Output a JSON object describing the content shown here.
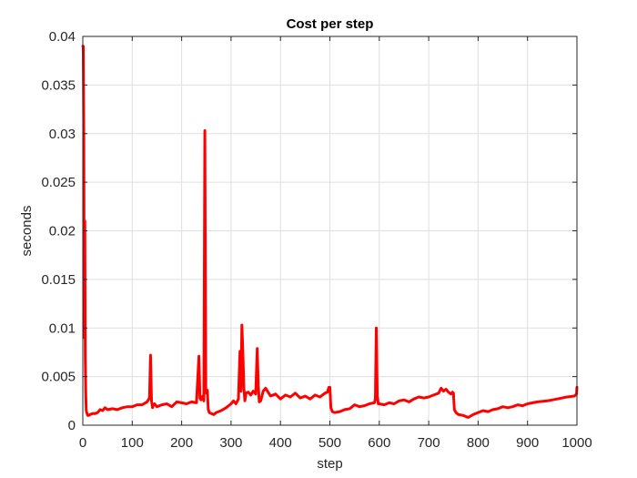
{
  "chart_data": {
    "type": "line",
    "title": "Cost per step",
    "xlabel": "step",
    "ylabel": "seconds",
    "xlim": [
      0,
      1000
    ],
    "ylim": [
      0,
      0.04
    ],
    "xticks": [
      "0",
      "100",
      "200",
      "300",
      "400",
      "500",
      "600",
      "700",
      "800",
      "900",
      "1000"
    ],
    "yticks": [
      "0",
      "0.005",
      "0.01",
      "0.015",
      "0.02",
      "0.025",
      "0.03",
      "0.035",
      "0.04"
    ],
    "grid": true,
    "legend": "none",
    "colors": {
      "line": "#ff0000",
      "grid": "#dfdfdf",
      "axis": "#262626"
    },
    "series": [
      {
        "x": [
          0,
          1,
          2,
          3,
          4,
          5,
          6,
          7,
          8,
          10,
          12,
          15,
          20,
          25,
          30,
          35,
          40,
          45,
          50,
          60,
          70,
          80,
          90,
          100,
          110,
          120,
          130,
          135,
          137,
          139,
          141,
          143,
          145,
          150,
          160,
          170,
          180,
          190,
          200,
          210,
          220,
          230,
          235,
          237,
          239,
          241,
          243,
          245,
          247,
          249,
          250,
          252,
          254,
          256,
          260,
          265,
          270,
          280,
          290,
          300,
          305,
          310,
          315,
          318,
          320,
          322,
          324,
          326,
          328,
          330,
          335,
          340,
          345,
          350,
          353,
          355,
          357,
          360,
          365,
          370,
          380,
          390,
          400,
          410,
          420,
          430,
          440,
          450,
          460,
          470,
          480,
          490,
          495,
          498,
          500,
          502,
          505,
          510,
          520,
          530,
          540,
          550,
          560,
          570,
          580,
          590,
          592,
          594,
          596,
          598,
          600,
          610,
          620,
          630,
          640,
          650,
          660,
          670,
          680,
          690,
          700,
          710,
          720,
          725,
          730,
          735,
          740,
          745,
          748,
          750,
          752,
          755,
          760,
          770,
          780,
          790,
          800,
          810,
          820,
          830,
          840,
          850,
          860,
          870,
          880,
          890,
          900,
          920,
          940,
          960,
          980,
          995,
          999,
          1000
        ],
        "values": [
          0.039,
          0.039,
          0.03,
          0.009,
          0.021,
          0.007,
          0.003,
          0.0015,
          0.0013,
          0.001,
          0.001,
          0.0011,
          0.0012,
          0.0012,
          0.0013,
          0.0016,
          0.0015,
          0.0018,
          0.0016,
          0.0017,
          0.0016,
          0.0018,
          0.0019,
          0.0019,
          0.0021,
          0.0021,
          0.0024,
          0.0028,
          0.0072,
          0.0025,
          0.0018,
          0.0021,
          0.0022,
          0.0019,
          0.0021,
          0.0022,
          0.0019,
          0.0024,
          0.0023,
          0.0022,
          0.0024,
          0.0023,
          0.0071,
          0.0028,
          0.0026,
          0.0029,
          0.003,
          0.0025,
          0.0303,
          0.0033,
          0.0033,
          0.0036,
          0.0016,
          0.0013,
          0.0012,
          0.0011,
          0.0013,
          0.0015,
          0.0018,
          0.0022,
          0.0025,
          0.0022,
          0.0027,
          0.0076,
          0.0035,
          0.0103,
          0.0075,
          0.0038,
          0.0025,
          0.0033,
          0.0034,
          0.0031,
          0.0035,
          0.0032,
          0.0079,
          0.0041,
          0.0024,
          0.0025,
          0.0035,
          0.0038,
          0.003,
          0.0032,
          0.0027,
          0.0031,
          0.0029,
          0.0033,
          0.0028,
          0.003,
          0.0027,
          0.0031,
          0.0029,
          0.0033,
          0.0034,
          0.0039,
          0.0039,
          0.0018,
          0.0014,
          0.0013,
          0.0014,
          0.0016,
          0.0017,
          0.0021,
          0.0019,
          0.002,
          0.0022,
          0.0023,
          0.0027,
          0.01,
          0.003,
          0.0022,
          0.0022,
          0.0021,
          0.0023,
          0.0022,
          0.0025,
          0.0026,
          0.0024,
          0.0027,
          0.0029,
          0.0028,
          0.0029,
          0.0031,
          0.0033,
          0.0038,
          0.0035,
          0.0037,
          0.0034,
          0.0032,
          0.0034,
          0.0033,
          0.0016,
          0.0013,
          0.0011,
          0.001,
          0.0008,
          0.0011,
          0.0013,
          0.0015,
          0.0014,
          0.0016,
          0.0017,
          0.0019,
          0.0018,
          0.0019,
          0.0021,
          0.002,
          0.0022,
          0.0024,
          0.0025,
          0.0027,
          0.0029,
          0.003,
          0.0032,
          0.0039
        ]
      }
    ]
  }
}
